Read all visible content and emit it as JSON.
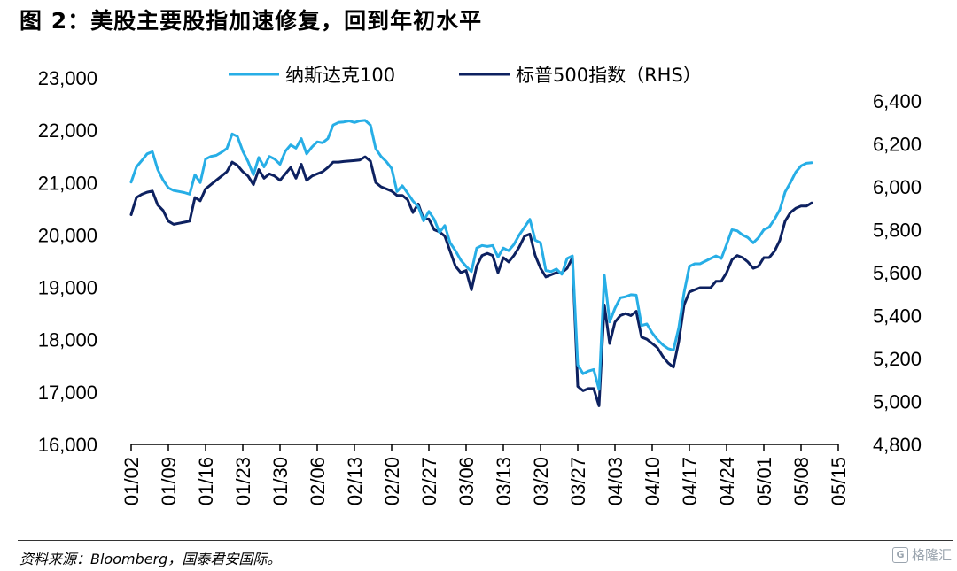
{
  "header": {
    "title": "图 2：美股主要股指加速修复，回到年初水平"
  },
  "footer": {
    "source": "资料来源：Bloomberg，国泰君安国际。",
    "watermark": "格隆汇"
  },
  "colors": {
    "nasdaq": "#27aee6",
    "sp500": "#0d2160",
    "axis": "#000000"
  },
  "chart_data": {
    "type": "line",
    "legend_position": "top",
    "grid": false,
    "x_tick_labels": [
      "01/02",
      "01/09",
      "01/16",
      "01/23",
      "01/30",
      "02/06",
      "02/13",
      "02/20",
      "02/27",
      "03/06",
      "03/13",
      "03/20",
      "03/27",
      "04/03",
      "04/10",
      "04/17",
      "04/24",
      "05/01",
      "05/08",
      "05/15"
    ],
    "x_range": [
      0,
      133
    ],
    "y_left": {
      "ylim": [
        16000,
        23000
      ],
      "ticks": [
        16000,
        17000,
        18000,
        19000,
        20000,
        21000,
        22000,
        23000
      ],
      "tick_labels": [
        "16,000",
        "17,000",
        "18,000",
        "19,000",
        "20,000",
        "21,000",
        "22,000",
        "23,000"
      ]
    },
    "y_right": {
      "ylim": [
        4800,
        6400
      ],
      "ticks": [
        4800,
        5000,
        5200,
        5400,
        5600,
        5800,
        6000,
        6200,
        6400
      ],
      "tick_labels": [
        "4,800",
        "5,000",
        "5,200",
        "5,400",
        "5,600",
        "5,800",
        "6,000",
        "6,200",
        "6,400"
      ]
    },
    "series": [
      {
        "name": "纳斯达克100",
        "axis": "left",
        "points": [
          [
            0,
            21010
          ],
          [
            1,
            21300
          ],
          [
            2,
            21420
          ],
          [
            3,
            21550
          ],
          [
            4,
            21590
          ],
          [
            5,
            21250
          ],
          [
            6,
            21050
          ],
          [
            7,
            20900
          ],
          [
            8,
            20850
          ],
          [
            9,
            20830
          ],
          [
            10,
            20810
          ],
          [
            11,
            20780
          ],
          [
            12,
            21150
          ],
          [
            13,
            21000
          ],
          [
            14,
            21450
          ],
          [
            15,
            21500
          ],
          [
            16,
            21520
          ],
          [
            17,
            21580
          ],
          [
            18,
            21650
          ],
          [
            19,
            21930
          ],
          [
            20,
            21880
          ],
          [
            21,
            21600
          ],
          [
            22,
            21400
          ],
          [
            23,
            21150
          ],
          [
            24,
            21480
          ],
          [
            25,
            21300
          ],
          [
            26,
            21500
          ],
          [
            27,
            21450
          ],
          [
            28,
            21350
          ],
          [
            29,
            21600
          ],
          [
            30,
            21720
          ],
          [
            31,
            21660
          ],
          [
            32,
            21840
          ],
          [
            33,
            21550
          ],
          [
            34,
            21680
          ],
          [
            35,
            21780
          ],
          [
            36,
            21760
          ],
          [
            37,
            21840
          ],
          [
            38,
            22100
          ],
          [
            39,
            22150
          ],
          [
            40,
            22160
          ],
          [
            41,
            22180
          ],
          [
            42,
            22150
          ],
          [
            43,
            22180
          ],
          [
            44,
            22190
          ],
          [
            45,
            22100
          ],
          [
            46,
            21650
          ],
          [
            47,
            21500
          ],
          [
            48,
            21400
          ],
          [
            49,
            21270
          ],
          [
            50,
            20830
          ],
          [
            51,
            20940
          ],
          [
            52,
            20800
          ],
          [
            53,
            20650
          ],
          [
            54,
            20540
          ],
          [
            55,
            20270
          ],
          [
            56,
            20450
          ],
          [
            57,
            20300
          ],
          [
            58,
            20050
          ],
          [
            59,
            20180
          ],
          [
            60,
            19850
          ],
          [
            61,
            19700
          ],
          [
            62,
            19520
          ],
          [
            63,
            19400
          ],
          [
            64,
            19300
          ],
          [
            65,
            19750
          ],
          [
            66,
            19800
          ],
          [
            67,
            19780
          ],
          [
            68,
            19800
          ],
          [
            69,
            19580
          ],
          [
            70,
            19750
          ],
          [
            71,
            19700
          ],
          [
            72,
            19820
          ],
          [
            73,
            20000
          ],
          [
            74,
            20150
          ],
          [
            75,
            20300
          ],
          [
            76,
            19900
          ],
          [
            77,
            19850
          ],
          [
            78,
            19320
          ],
          [
            79,
            19300
          ],
          [
            80,
            19350
          ],
          [
            81,
            19250
          ],
          [
            82,
            19550
          ],
          [
            83,
            19600
          ],
          [
            84,
            17520
          ],
          [
            85,
            17350
          ],
          [
            86,
            17400
          ],
          [
            87,
            17430
          ],
          [
            88,
            17050
          ],
          [
            89,
            19230
          ],
          [
            90,
            18340
          ],
          [
            91,
            18600
          ],
          [
            92,
            18800
          ],
          [
            93,
            18820
          ],
          [
            94,
            18860
          ],
          [
            95,
            18850
          ],
          [
            96,
            18270
          ],
          [
            97,
            18300
          ],
          [
            98,
            18130
          ],
          [
            99,
            18000
          ],
          [
            100,
            17900
          ],
          [
            101,
            17830
          ],
          [
            102,
            17800
          ],
          [
            103,
            18230
          ],
          [
            104,
            18900
          ],
          [
            105,
            19400
          ],
          [
            106,
            19450
          ],
          [
            107,
            19450
          ],
          [
            108,
            19500
          ],
          [
            109,
            19550
          ],
          [
            110,
            19600
          ],
          [
            111,
            19550
          ],
          [
            112,
            19820
          ],
          [
            113,
            20100
          ],
          [
            114,
            20080
          ],
          [
            115,
            20000
          ],
          [
            116,
            19950
          ],
          [
            117,
            19850
          ],
          [
            118,
            19950
          ],
          [
            119,
            20100
          ],
          [
            120,
            20150
          ],
          [
            121,
            20300
          ],
          [
            122,
            20480
          ],
          [
            123,
            20820
          ],
          [
            124,
            21000
          ],
          [
            125,
            21200
          ],
          [
            126,
            21320
          ],
          [
            127,
            21370
          ],
          [
            128,
            21380
          ]
        ]
      },
      {
        "name": "标普500指数（RHS）",
        "axis": "right",
        "points": [
          [
            0,
            5870
          ],
          [
            1,
            5950
          ],
          [
            2,
            5965
          ],
          [
            3,
            5975
          ],
          [
            4,
            5980
          ],
          [
            5,
            5915
          ],
          [
            6,
            5890
          ],
          [
            7,
            5840
          ],
          [
            8,
            5825
          ],
          [
            9,
            5830
          ],
          [
            10,
            5835
          ],
          [
            11,
            5840
          ],
          [
            12,
            5950
          ],
          [
            13,
            5935
          ],
          [
            14,
            5990
          ],
          [
            15,
            6010
          ],
          [
            16,
            6030
          ],
          [
            17,
            6050
          ],
          [
            18,
            6070
          ],
          [
            19,
            6115
          ],
          [
            20,
            6100
          ],
          [
            21,
            6070
          ],
          [
            22,
            6050
          ],
          [
            23,
            6010
          ],
          [
            24,
            6080
          ],
          [
            25,
            6040
          ],
          [
            26,
            6060
          ],
          [
            27,
            6050
          ],
          [
            28,
            6030
          ],
          [
            29,
            6060
          ],
          [
            30,
            6090
          ],
          [
            31,
            6040
          ],
          [
            32,
            6105
          ],
          [
            33,
            6030
          ],
          [
            34,
            6050
          ],
          [
            35,
            6060
          ],
          [
            36,
            6070
          ],
          [
            37,
            6090
          ],
          [
            38,
            6115
          ],
          [
            39,
            6115
          ],
          [
            40,
            6118
          ],
          [
            41,
            6120
          ],
          [
            42,
            6122
          ],
          [
            43,
            6125
          ],
          [
            44,
            6140
          ],
          [
            45,
            6120
          ],
          [
            46,
            6020
          ],
          [
            47,
            6000
          ],
          [
            48,
            5990
          ],
          [
            49,
            5980
          ],
          [
            50,
            5960
          ],
          [
            51,
            5960
          ],
          [
            52,
            5940
          ],
          [
            53,
            5880
          ],
          [
            54,
            5920
          ],
          [
            55,
            5850
          ],
          [
            56,
            5850
          ],
          [
            57,
            5800
          ],
          [
            58,
            5790
          ],
          [
            59,
            5770
          ],
          [
            60,
            5700
          ],
          [
            61,
            5630
          ],
          [
            62,
            5600
          ],
          [
            63,
            5610
          ],
          [
            64,
            5520
          ],
          [
            65,
            5630
          ],
          [
            66,
            5680
          ],
          [
            67,
            5690
          ],
          [
            68,
            5680
          ],
          [
            69,
            5600
          ],
          [
            70,
            5670
          ],
          [
            71,
            5650
          ],
          [
            72,
            5680
          ],
          [
            73,
            5720
          ],
          [
            74,
            5770
          ],
          [
            75,
            5780
          ],
          [
            76,
            5680
          ],
          [
            77,
            5620
          ],
          [
            78,
            5580
          ],
          [
            79,
            5590
          ],
          [
            80,
            5600
          ],
          [
            81,
            5600
          ],
          [
            82,
            5620
          ],
          [
            83,
            5670
          ],
          [
            84,
            5070
          ],
          [
            85,
            5050
          ],
          [
            86,
            5060
          ],
          [
            87,
            5060
          ],
          [
            88,
            4980
          ],
          [
            89,
            5450
          ],
          [
            90,
            5270
          ],
          [
            91,
            5370
          ],
          [
            92,
            5400
          ],
          [
            93,
            5410
          ],
          [
            94,
            5400
          ],
          [
            95,
            5420
          ],
          [
            96,
            5300
          ],
          [
            97,
            5290
          ],
          [
            98,
            5270
          ],
          [
            99,
            5250
          ],
          [
            100,
            5210
          ],
          [
            101,
            5180
          ],
          [
            102,
            5160
          ],
          [
            103,
            5280
          ],
          [
            104,
            5450
          ],
          [
            105,
            5510
          ],
          [
            106,
            5520
          ],
          [
            107,
            5530
          ],
          [
            108,
            5530
          ],
          [
            109,
            5530
          ],
          [
            110,
            5560
          ],
          [
            111,
            5560
          ],
          [
            112,
            5600
          ],
          [
            113,
            5660
          ],
          [
            114,
            5680
          ],
          [
            115,
            5670
          ],
          [
            116,
            5650
          ],
          [
            117,
            5620
          ],
          [
            118,
            5630
          ],
          [
            119,
            5670
          ],
          [
            120,
            5670
          ],
          [
            121,
            5700
          ],
          [
            122,
            5750
          ],
          [
            123,
            5840
          ],
          [
            124,
            5880
          ],
          [
            125,
            5900
          ],
          [
            126,
            5910
          ],
          [
            127,
            5910
          ],
          [
            128,
            5925
          ]
        ]
      }
    ]
  }
}
